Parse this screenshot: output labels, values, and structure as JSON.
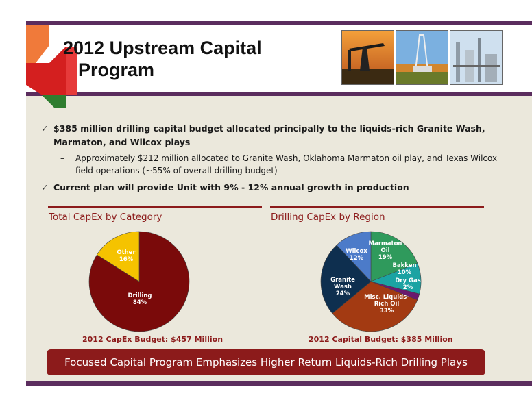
{
  "header": {
    "title_line1": "2012 Upstream Capital",
    "title_line2": "Program",
    "photos": [
      "pumpjack-photo",
      "drilling-rig-photo",
      "processing-plant-photo"
    ]
  },
  "bullets": {
    "b1": "$385 million drilling capital budget allocated principally to the liquids-rich Granite Wash, Marmaton, and Wilcox plays",
    "b2": "Approximately $212 million allocated to Granite Wash, Oklahoma Marmaton oil play, and Texas Wilcox field operations (~55% of overall drilling budget)",
    "b3": "Current plan will provide Unit with 9% - 12% annual growth in production",
    "check_icon": "checkmark-icon",
    "dash": "–"
  },
  "callout": "Focused Capital Program Emphasizes Higher Return Liquids-Rich Drilling Plays",
  "colors": {
    "purple_band": "#5b2d5e",
    "maroon": "#8c1b1b",
    "background": "#ebe8dc"
  },
  "chart_data": [
    {
      "type": "pie",
      "title": "Total CapEx by Category",
      "caption": "2012 CapEx Budget: $457 Million",
      "slices": [
        {
          "label": "Drilling",
          "value": 84,
          "color": "#7a0a0a",
          "text": "Drilling",
          "pct": "84%"
        },
        {
          "label": "Other",
          "value": 16,
          "color": "#f5c300",
          "text": "Other",
          "pct": "16%"
        }
      ]
    },
    {
      "type": "pie",
      "title": "Drilling CapEx by Region",
      "caption": "2012 Capital Budget: $385 Million",
      "slices": [
        {
          "label": "Marmaton Oil",
          "value": 19,
          "color": "#2f9a5c",
          "text": "Marmaton Oil",
          "pct": "19%"
        },
        {
          "label": "Bakken",
          "value": 10,
          "color": "#1ba3a3",
          "text": "Bakken",
          "pct": "10%"
        },
        {
          "label": "Dry Gas",
          "value": 2,
          "color": "#6a1a6e",
          "text": "Dry Gas",
          "pct": "2%"
        },
        {
          "label": "Misc. Liquids-Rich Oil",
          "value": 33,
          "color": "#a33a12",
          "text": "Misc. Liquids-Rich Oil",
          "pct": "33%"
        },
        {
          "label": "Granite Wash",
          "value": 24,
          "color": "#0e2f4f",
          "text": "Granite Wash",
          "pct": "24%"
        },
        {
          "label": "Wilcox",
          "value": 12,
          "color": "#4c7bc9",
          "text": "Wilcox",
          "pct": "12%"
        }
      ]
    }
  ]
}
